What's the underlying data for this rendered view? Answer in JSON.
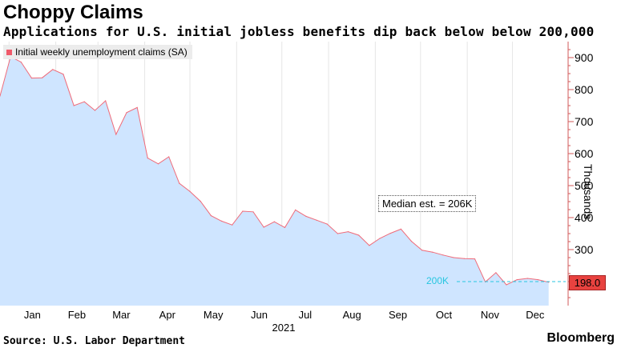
{
  "header": {
    "title": "Choppy Claims",
    "subtitle": "Applications for U.S. initial jobless benefits dip back below below 200,000"
  },
  "footer": {
    "source": "Source: U.S. Labor Department",
    "brand": "Bloomberg"
  },
  "annotation": "Median est. = 206K",
  "threshold_label": "200K",
  "last_value_label": "198.0",
  "colors": {
    "area_fill": "#cfe5ff",
    "line": "#f06a78",
    "threshold": "#27c6e0",
    "badge": "#e8423f"
  },
  "chart_data": {
    "type": "area",
    "legend": [
      "Initial weekly unemployment claims (SA)"
    ],
    "legend_position": "top-left",
    "ylabel": "Thousands",
    "xlabel": "2021",
    "y_ticks": [
      300,
      400,
      500,
      600,
      700,
      800,
      900
    ],
    "ylim": [
      125,
      950
    ],
    "month_labels": [
      "Jan",
      "Feb",
      "Mar",
      "Apr",
      "May",
      "Jun",
      "Jul",
      "Aug",
      "Sep",
      "Oct",
      "Nov",
      "Dec"
    ],
    "grid": "vertical",
    "threshold_line": 200,
    "series": [
      {
        "name": "Initial weekly unemployment claims (SA)",
        "x": [
          "2020-12-26",
          "2021-01-02",
          "2021-01-09",
          "2021-01-16",
          "2021-01-23",
          "2021-01-30",
          "2021-02-06",
          "2021-02-13",
          "2021-02-20",
          "2021-02-27",
          "2021-03-06",
          "2021-03-13",
          "2021-03-20",
          "2021-03-27",
          "2021-04-03",
          "2021-04-10",
          "2021-04-17",
          "2021-04-24",
          "2021-05-01",
          "2021-05-08",
          "2021-05-15",
          "2021-05-22",
          "2021-05-29",
          "2021-06-05",
          "2021-06-12",
          "2021-06-19",
          "2021-06-26",
          "2021-07-03",
          "2021-07-10",
          "2021-07-17",
          "2021-07-24",
          "2021-07-31",
          "2021-08-07",
          "2021-08-14",
          "2021-08-21",
          "2021-08-28",
          "2021-09-04",
          "2021-09-11",
          "2021-09-18",
          "2021-09-25",
          "2021-10-02",
          "2021-10-09",
          "2021-10-16",
          "2021-10-23",
          "2021-10-30",
          "2021-11-06",
          "2021-11-13",
          "2021-11-20",
          "2021-11-27",
          "2021-12-04",
          "2021-12-11",
          "2021-12-18",
          "2021-12-25"
        ],
        "values": [
          780,
          903,
          886,
          836,
          837,
          863,
          848,
          750,
          762,
          735,
          765,
          660,
          728,
          744,
          586,
          568,
          590,
          507,
          482,
          451,
          406,
          389,
          377,
          420,
          418,
          370,
          387,
          369,
          424,
          404,
          392,
          380,
          350,
          356,
          345,
          313,
          335,
          351,
          364,
          326,
          298,
          292,
          283,
          275,
          272,
          271,
          199,
          228,
          190,
          206,
          210,
          206,
          198
        ]
      }
    ]
  }
}
